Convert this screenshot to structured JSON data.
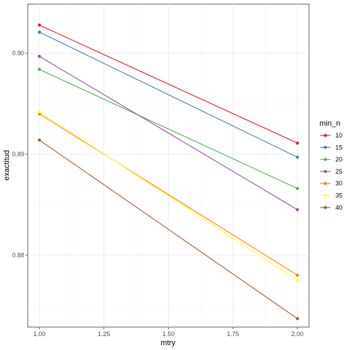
{
  "chart_data": {
    "type": "line",
    "xlabel": "mtry",
    "ylabel": "exactitud",
    "xlim": [
      0.955,
      2.045
    ],
    "ylim": [
      0.87286,
      0.90487
    ],
    "x_ticks": [
      1.0,
      1.25,
      1.5,
      1.75,
      2.0
    ],
    "x_tick_labels": [
      "1.00",
      "1.25",
      "1.50",
      "1.75",
      "2.00"
    ],
    "y_ticks": [
      0.88,
      0.89,
      0.9
    ],
    "y_tick_labels": [
      "0.88",
      "0.89",
      "0.90"
    ],
    "grid": true,
    "legend": {
      "title": "min_n",
      "position": "right"
    },
    "x": [
      1.0,
      2.0
    ],
    "series": [
      {
        "name": "10",
        "color": "#E41A1C",
        "values": [
          0.9028,
          0.8911
        ]
      },
      {
        "name": "15",
        "color": "#377EB8",
        "values": [
          0.9021,
          0.8897
        ]
      },
      {
        "name": "20",
        "color": "#4DAF4A",
        "values": [
          0.8984,
          0.8866
        ]
      },
      {
        "name": "25",
        "color": "#984EA3",
        "values": [
          0.8997,
          0.8845
        ]
      },
      {
        "name": "30",
        "color": "#FF7F00",
        "values": [
          0.894,
          0.878
        ]
      },
      {
        "name": "35",
        "color": "#FFFF33",
        "values": [
          0.8942,
          0.8775
        ]
      },
      {
        "name": "40",
        "color": "#A65628",
        "values": [
          0.8914,
          0.8737
        ]
      }
    ]
  }
}
